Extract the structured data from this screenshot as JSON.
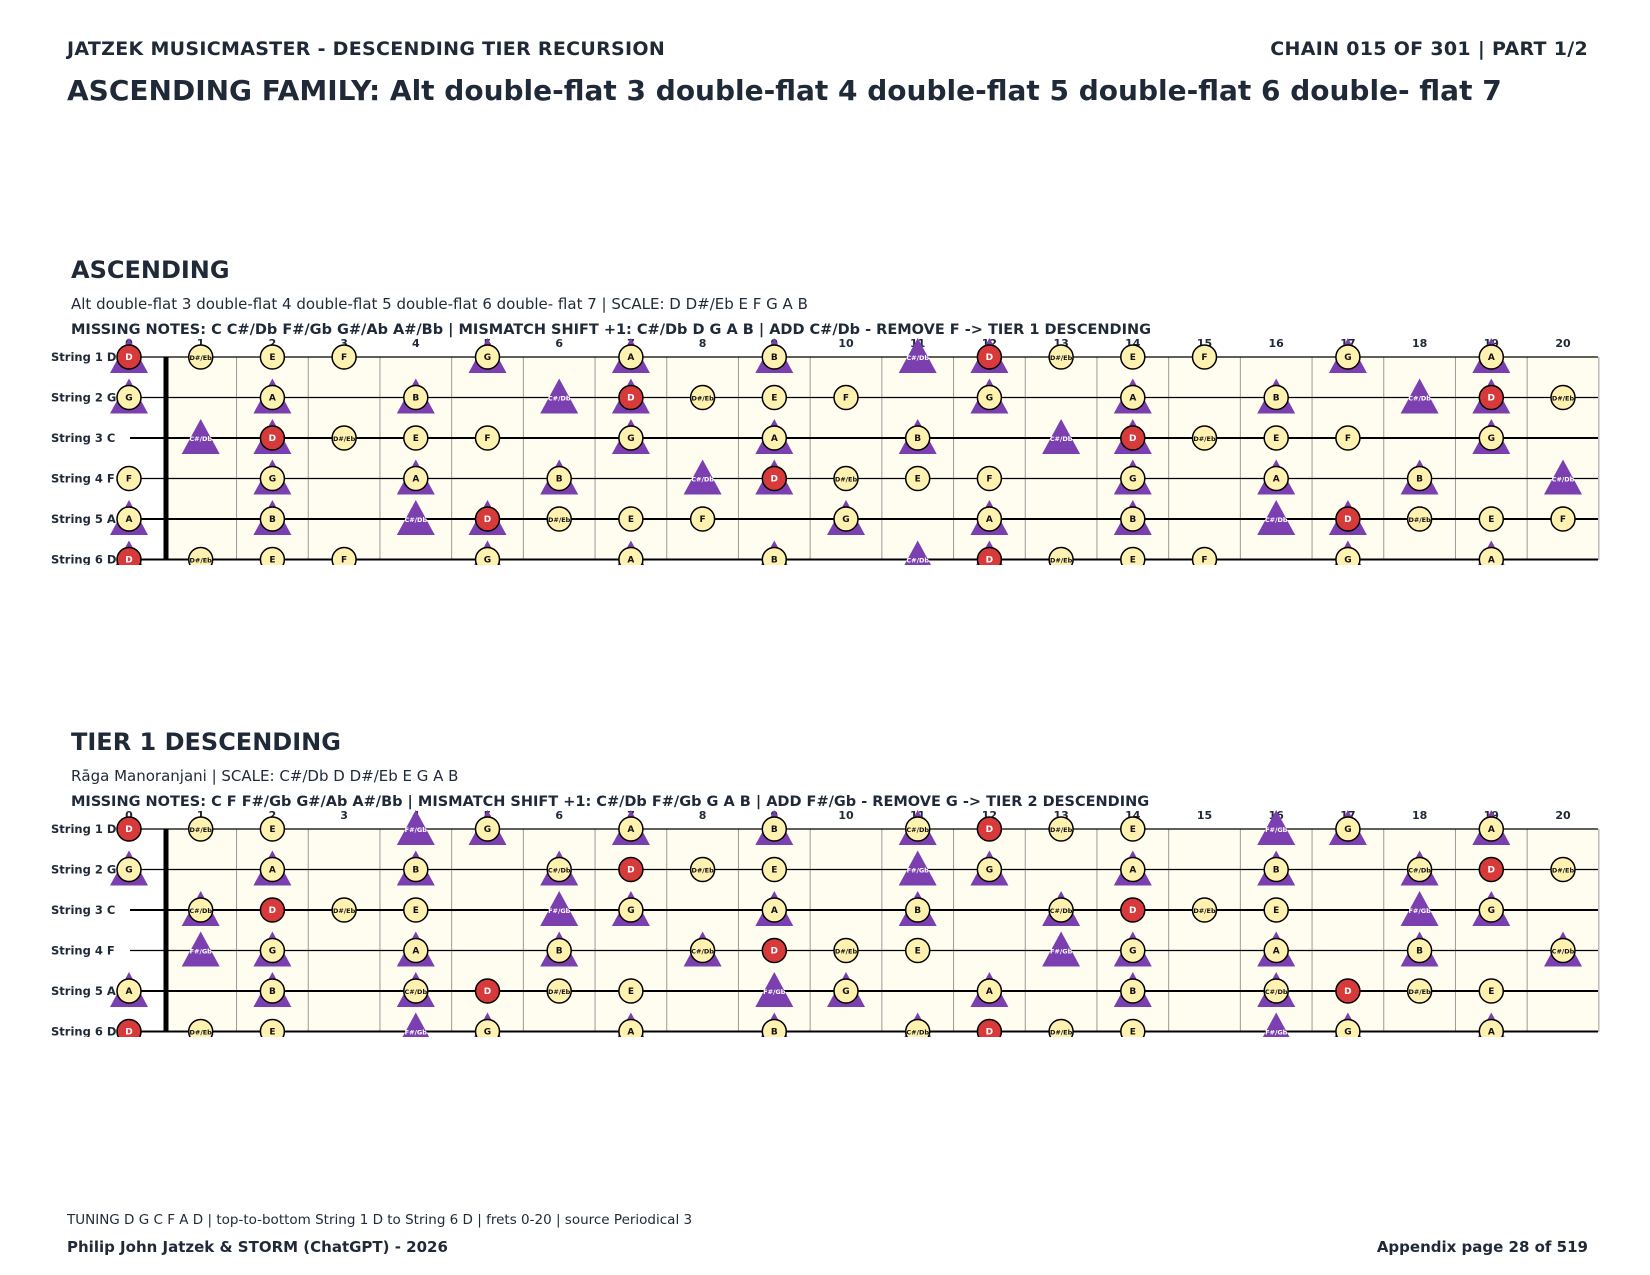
{
  "header": {
    "left": "JATZEK MUSICMASTER - DESCENDING TIER RECURSION",
    "right": "CHAIN 015 OF 301  |  PART 1/2"
  },
  "title": "ASCENDING FAMILY: Alt double-flat 3 double-flat 4 double-flat 5 double-flat 6 double- flat 7",
  "colors": {
    "board_bg": "#fffdf0",
    "note_fill": "#fff2b0",
    "root_fill": "#d63a3a",
    "triangle": "#7b3fb0",
    "text_dark": "#1f2937"
  },
  "fret_numbers": [
    "0",
    "1",
    "2",
    "3",
    "4",
    "5",
    "6",
    "7",
    "8",
    "9",
    "10",
    "11",
    "12",
    "13",
    "14",
    "15",
    "16",
    "17",
    "18",
    "19",
    "20"
  ],
  "string_labels": [
    "String 1 D",
    "String 2 G",
    "String 3 C",
    "String 4 F",
    "String 5 A",
    "String 6 D"
  ],
  "sections": [
    {
      "title": "ASCENDING",
      "subtitle": "Alt double-flat 3 double-flat 4 double-flat 5 double-flat 6 double- flat 7  |  SCALE: D D#/Eb E F G A B",
      "missing": "MISSING NOTES: C C#/Db F#/Gb G#/Ab A#/Bb  |  MISMATCH SHIFT +1: C#/Db D G A B  |  ADD C#/Db - REMOVE F -> TIER 1 DESCENDING",
      "root": "D",
      "scale": [
        "D",
        "D#/Eb",
        "E",
        "F",
        "G",
        "A",
        "B"
      ],
      "triangles": [
        "C#/Db",
        "D",
        "G",
        "A",
        "B"
      ]
    },
    {
      "title": "TIER 1 DESCENDING",
      "subtitle": "Rāga Manoranjani  |  SCALE: C#/Db D D#/Eb E G A B",
      "missing": "MISSING NOTES: C F F#/Gb G#/Ab A#/Bb  |  MISMATCH SHIFT +1: C#/Db F#/Gb G A B  |  ADD F#/Gb - REMOVE G -> TIER 2 DESCENDING",
      "root": "D",
      "scale": [
        "C#/Db",
        "D",
        "D#/Eb",
        "E",
        "G",
        "A",
        "B"
      ],
      "triangles": [
        "C#/Db",
        "F#/Gb",
        "G",
        "A",
        "B"
      ]
    }
  ],
  "footer": {
    "note": "TUNING D G C F A D | top-to-bottom String 1 D to String 6 D | frets 0-20 | source Periodical 3",
    "left": "Philip John Jatzek & STORM (ChatGPT) - 2026",
    "right": "Appendix page 28 of 519"
  }
}
